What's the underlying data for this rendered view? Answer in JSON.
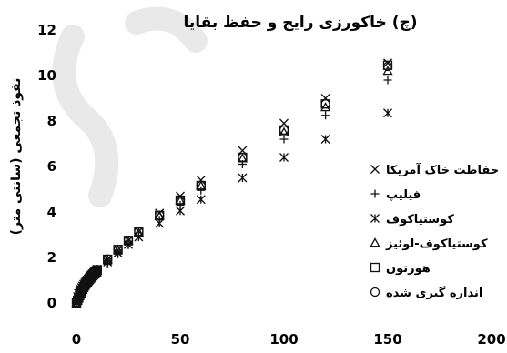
{
  "chart_data": {
    "type": "scatter",
    "title": "(چ) خاکورزی رایج و حفظ بقایا",
    "xlabel": "",
    "ylabel": "نفوذ تجمعی (سانتی متر)",
    "xlim": [
      0,
      200
    ],
    "ylim": [
      0,
      12
    ],
    "x_ticks": [
      "0",
      "50",
      "100",
      "150",
      "200"
    ],
    "y_ticks": [
      "0",
      "2",
      "4",
      "6",
      "8",
      "10",
      "12"
    ],
    "grid": false,
    "legend_position": "right",
    "x": [
      0,
      0.5,
      1,
      1.5,
      2,
      2.5,
      3,
      3.5,
      4,
      4.5,
      5,
      5.5,
      6,
      6.5,
      7,
      7.5,
      8,
      8.5,
      9,
      9.5,
      10,
      15,
      20,
      25,
      30,
      40,
      50,
      60,
      80,
      100,
      120,
      150
    ],
    "series": [
      {
        "name": "حفاظت خاک آمریکا",
        "marker": "x",
        "values": [
          0.0,
          0.28,
          0.42,
          0.52,
          0.6,
          0.68,
          0.75,
          0.82,
          0.88,
          0.94,
          1.0,
          1.05,
          1.11,
          1.16,
          1.21,
          1.26,
          1.3,
          1.35,
          1.4,
          1.44,
          1.48,
          1.9,
          2.32,
          2.75,
          3.15,
          3.95,
          4.7,
          5.4,
          6.7,
          7.9,
          9.0,
          10.55
        ]
      },
      {
        "name": "فیلیپ",
        "marker": "plus",
        "values": [
          0.0,
          0.18,
          0.27,
          0.35,
          0.42,
          0.48,
          0.54,
          0.6,
          0.66,
          0.71,
          0.76,
          0.81,
          0.86,
          0.91,
          0.96,
          1.0,
          1.05,
          1.09,
          1.14,
          1.18,
          1.23,
          1.7,
          2.15,
          2.55,
          2.93,
          3.65,
          4.3,
          4.95,
          6.1,
          7.2,
          8.25,
          9.8
        ]
      },
      {
        "name": "کوستیاکوف",
        "marker": "asterisk",
        "values": [
          0.0,
          0.1,
          0.2,
          0.3,
          0.4,
          0.5,
          0.58,
          0.66,
          0.74,
          0.8,
          0.86,
          0.92,
          0.98,
          1.03,
          1.08,
          1.13,
          1.18,
          1.22,
          1.26,
          1.3,
          1.35,
          1.8,
          2.2,
          2.57,
          2.9,
          3.5,
          4.05,
          4.55,
          5.5,
          6.4,
          7.2,
          8.35
        ]
      },
      {
        "name": "کوستیاکوف-لوئیز",
        "marker": "triangle",
        "values": [
          0.0,
          0.11,
          0.21,
          0.31,
          0.41,
          0.51,
          0.6,
          0.68,
          0.76,
          0.83,
          0.9,
          0.96,
          1.02,
          1.07,
          1.12,
          1.17,
          1.22,
          1.27,
          1.32,
          1.37,
          1.41,
          1.88,
          2.31,
          2.71,
          3.1,
          3.82,
          4.5,
          5.15,
          6.35,
          7.5,
          8.6,
          10.2
        ]
      },
      {
        "name": "هورتون",
        "marker": "square",
        "values": [
          0.0,
          0.12,
          0.22,
          0.32,
          0.42,
          0.52,
          0.61,
          0.7,
          0.78,
          0.85,
          0.92,
          0.98,
          1.04,
          1.1,
          1.16,
          1.21,
          1.26,
          1.31,
          1.36,
          1.41,
          1.46,
          1.92,
          2.35,
          2.75,
          3.13,
          3.85,
          4.52,
          5.16,
          6.4,
          7.6,
          8.75,
          10.45
        ]
      },
      {
        "name": "اندازه گیری شده",
        "marker": "circle",
        "values": [
          0.0,
          0.12,
          0.23,
          0.33,
          0.43,
          0.52,
          0.61,
          0.7,
          0.78,
          0.85,
          0.92,
          0.98,
          1.05,
          1.11,
          1.16,
          1.22,
          1.27,
          1.32,
          1.37,
          1.42,
          1.47,
          1.93,
          2.36,
          2.76,
          3.14,
          3.86,
          4.53,
          5.17,
          6.4,
          7.6,
          8.75,
          10.4
        ]
      }
    ]
  }
}
